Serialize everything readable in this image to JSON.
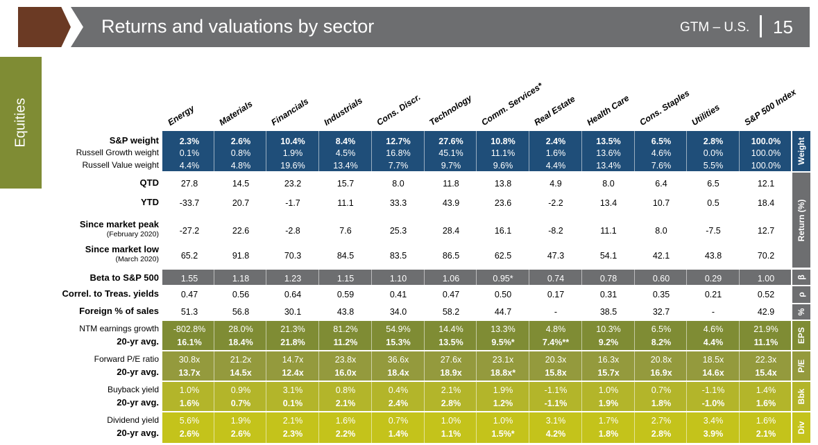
{
  "header": {
    "title": "Returns and valuations by sector",
    "tag": "GTM – U.S.",
    "page": "15"
  },
  "side_tab": "Equities",
  "columns": [
    "Energy",
    "Materials",
    "Financials",
    "Industrials",
    "Cons. Discr.",
    "Technology",
    "Comm. Services*",
    "Real Estate",
    "Health Care",
    "Cons. Staples",
    "Utilities",
    "S&P 500 Index"
  ],
  "rows": [
    {
      "label": "S&P weight",
      "bold": true,
      "values": [
        "2.3%",
        "2.6%",
        "10.4%",
        "8.4%",
        "12.7%",
        "27.6%",
        "10.8%",
        "2.4%",
        "13.5%",
        "6.5%",
        "2.8%",
        "100.0%"
      ]
    },
    {
      "label": "Russell Growth weight",
      "bold": false,
      "values": [
        "0.1%",
        "0.8%",
        "1.9%",
        "4.5%",
        "16.8%",
        "45.1%",
        "11.1%",
        "1.6%",
        "13.6%",
        "4.6%",
        "0.0%",
        "100.0%"
      ]
    },
    {
      "label": "Russell Value weight",
      "bold": false,
      "values": [
        "4.4%",
        "4.8%",
        "19.6%",
        "13.4%",
        "7.7%",
        "9.7%",
        "9.6%",
        "4.4%",
        "13.4%",
        "7.6%",
        "5.5%",
        "100.0%"
      ]
    },
    {
      "label": "QTD",
      "bold": true,
      "values": [
        "27.8",
        "14.5",
        "23.2",
        "15.7",
        "8.0",
        "11.8",
        "13.8",
        "4.9",
        "8.0",
        "6.4",
        "6.5",
        "12.1"
      ]
    },
    {
      "label": "YTD",
      "bold": true,
      "values": [
        "-33.7",
        "20.7",
        "-1.7",
        "11.1",
        "33.3",
        "43.9",
        "23.6",
        "-2.2",
        "13.4",
        "10.7",
        "0.5",
        "18.4"
      ]
    },
    {
      "label": "Since market peak",
      "sub": "(February 2020)",
      "bold": true,
      "values": [
        "-27.2",
        "22.6",
        "-2.8",
        "7.6",
        "25.3",
        "28.4",
        "16.1",
        "-8.2",
        "11.1",
        "8.0",
        "-7.5",
        "12.7"
      ]
    },
    {
      "label": "Since market low",
      "sub": "(March 2020)",
      "bold": true,
      "values": [
        "65.2",
        "91.8",
        "70.3",
        "84.5",
        "83.5",
        "86.5",
        "62.5",
        "47.3",
        "54.1",
        "42.1",
        "43.8",
        "70.2"
      ]
    },
    {
      "label": "Beta to S&P 500",
      "bold": true,
      "values": [
        "1.55",
        "1.18",
        "1.23",
        "1.15",
        "1.10",
        "1.06",
        "0.95*",
        "0.74",
        "0.78",
        "0.60",
        "0.29",
        "1.00"
      ]
    },
    {
      "label": "Correl. to Treas. yields",
      "bold": true,
      "values": [
        "0.47",
        "0.56",
        "0.64",
        "0.59",
        "0.41",
        "0.47",
        "0.50",
        "0.17",
        "0.31",
        "0.35",
        "0.21",
        "0.52"
      ]
    },
    {
      "label": "Foreign % of sales",
      "bold": true,
      "values": [
        "51.3",
        "56.8",
        "30.1",
        "43.8",
        "34.0",
        "58.2",
        "44.7",
        "-",
        "38.5",
        "32.7",
        "-",
        "42.9"
      ]
    },
    {
      "label": "NTM earnings growth",
      "bold": false,
      "values": [
        "-802.8%",
        "28.0%",
        "21.3%",
        "81.2%",
        "54.9%",
        "14.4%",
        "13.3%",
        "4.8%",
        "10.3%",
        "6.5%",
        "4.6%",
        "21.9%"
      ]
    },
    {
      "label": "20-yr avg.",
      "bold": true,
      "values": [
        "16.1%",
        "18.4%",
        "21.8%",
        "11.2%",
        "15.3%",
        "13.5%",
        "9.5%*",
        "7.4%**",
        "9.2%",
        "8.2%",
        "4.4%",
        "11.1%"
      ]
    },
    {
      "label": "Forward P/E ratio",
      "bold": false,
      "values": [
        "30.8x",
        "21.2x",
        "14.7x",
        "23.8x",
        "36.6x",
        "27.6x",
        "23.1x",
        "20.3x",
        "16.3x",
        "20.8x",
        "18.5x",
        "22.3x"
      ]
    },
    {
      "label": "20-yr avg.",
      "bold": true,
      "values": [
        "13.7x",
        "14.5x",
        "12.4x",
        "16.0x",
        "18.4x",
        "18.9x",
        "18.8x*",
        "15.8x",
        "15.7x",
        "16.9x",
        "14.6x",
        "15.4x"
      ]
    },
    {
      "label": "Buyback yield",
      "bold": false,
      "values": [
        "1.0%",
        "0.9%",
        "3.1%",
        "0.8%",
        "0.4%",
        "2.1%",
        "1.9%",
        "-1.1%",
        "1.0%",
        "0.7%",
        "-1.1%",
        "1.4%"
      ]
    },
    {
      "label": "20-yr avg.",
      "bold": true,
      "values": [
        "1.6%",
        "0.7%",
        "0.1%",
        "2.1%",
        "2.4%",
        "2.8%",
        "1.2%",
        "-1.1%",
        "1.9%",
        "1.8%",
        "-1.0%",
        "1.6%"
      ]
    },
    {
      "label": "Dividend yield",
      "bold": false,
      "values": [
        "5.6%",
        "1.9%",
        "2.1%",
        "1.6%",
        "0.7%",
        "1.0%",
        "1.0%",
        "3.1%",
        "1.7%",
        "2.7%",
        "3.4%",
        "1.6%"
      ]
    },
    {
      "label": "20-yr avg.",
      "bold": true,
      "values": [
        "2.6%",
        "2.6%",
        "2.3%",
        "2.2%",
        "1.4%",
        "1.1%",
        "1.5%*",
        "4.2%",
        "1.8%",
        "2.8%",
        "3.9%",
        "2.1%"
      ]
    }
  ],
  "section_tabs": [
    "Weight",
    "Return (%)",
    "β",
    "ρ",
    "%",
    "EPS",
    "P/E",
    "Bbk",
    "Div"
  ],
  "colors": {
    "weight_band": "#1f4e79",
    "gray_band": "#6d6e70",
    "eps_band": "#7f8c34",
    "pe_band": "#949a3d",
    "bbk_band": "#b3b52a",
    "div_band": "#c4c31b",
    "header_arrow": "#6b3a24",
    "header_bar": "#6d6e70"
  }
}
